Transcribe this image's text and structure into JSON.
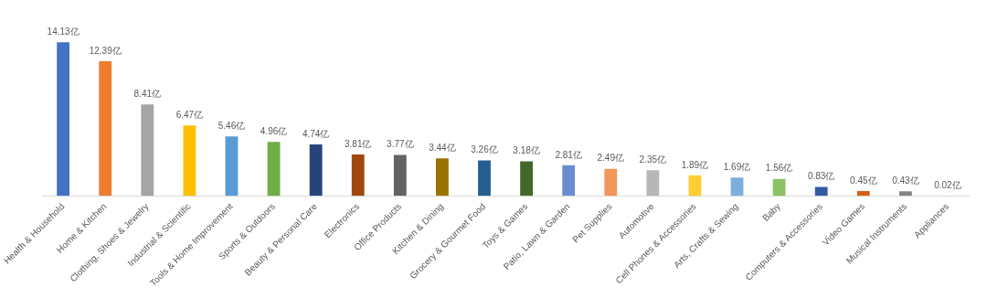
{
  "chart_data": {
    "type": "bar",
    "categories": [
      "Health & Household",
      "Home & Kitchen",
      "Clothing, Shoes & Jewelry",
      "Industrial & Scientific",
      "Tools & Home Improvement",
      "Sports & Outdoors",
      "Beauty & Personal Care",
      "Electronics",
      "Office Products",
      "Kitchen & Dining",
      "Grocery & Gourmet Food",
      "Toys & Games",
      "Patio, Lawn & Garden",
      "Pet Supplies",
      "Automotive",
      "Cell Phones & Accessories",
      "Arts, Crafts & Sewing",
      "Baby",
      "Computers & Accessories",
      "Video Games",
      "Musical Instruments",
      "Appliances"
    ],
    "values": [
      14.13,
      12.39,
      8.41,
      6.47,
      5.46,
      4.96,
      4.74,
      3.81,
      3.77,
      3.44,
      3.26,
      3.18,
      2.81,
      2.49,
      2.35,
      1.89,
      1.69,
      1.56,
      0.83,
      0.45,
      0.43,
      0.02
    ],
    "value_labels": [
      "14.13亿",
      "12.39亿",
      "8.41亿",
      "6.47亿",
      "5.46亿",
      "4.96亿",
      "4.74亿",
      "3.81亿",
      "3.77亿",
      "3.44亿",
      "3.26亿",
      "3.18亿",
      "2.81亿",
      "2.49亿",
      "2.35亿",
      "1.89亿",
      "1.69亿",
      "1.56亿",
      "0.83亿",
      "0.45亿",
      "0.43亿",
      "0.02亿"
    ],
    "colors": [
      "#4472c4",
      "#ed7d31",
      "#a5a5a5",
      "#ffc000",
      "#5b9bd5",
      "#70ad47",
      "#264478",
      "#9e480e",
      "#636363",
      "#997300",
      "#255e91",
      "#43682b",
      "#698ed0",
      "#f1975a",
      "#b7b7b7",
      "#ffcd33",
      "#7cafdd",
      "#8cc168",
      "#335aa1",
      "#d26012",
      "#848484",
      "#cc9a00"
    ],
    "tick_labels": "x",
    "grid": false
  }
}
